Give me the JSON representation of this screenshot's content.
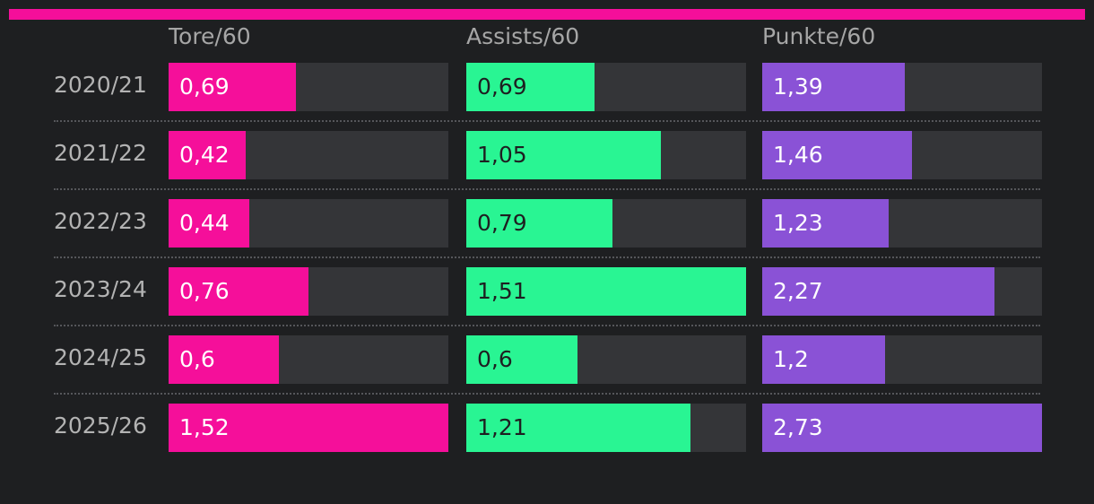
{
  "colors": {
    "accent": "#f50f9a",
    "background": "#1e1f21",
    "track": "#343538"
  },
  "chart_data": {
    "type": "bar",
    "categories": [
      "2020/21",
      "2021/22",
      "2022/23",
      "2023/24",
      "2024/25",
      "2025/26"
    ],
    "series": [
      {
        "name": "Tore/60",
        "color": "#f50f9a",
        "text_color": "#ffffff",
        "values": [
          0.69,
          0.42,
          0.44,
          0.76,
          0.6,
          1.52
        ],
        "labels": [
          "0,69",
          "0,42",
          "0,44",
          "0,76",
          "0,6",
          "1,52"
        ]
      },
      {
        "name": "Assists/60",
        "color": "#29f593",
        "text_color": "#1e1f21",
        "values": [
          0.69,
          1.05,
          0.79,
          1.51,
          0.6,
          1.21
        ],
        "labels": [
          "0,69",
          "1,05",
          "0,79",
          "1,51",
          "0,6",
          "1,21"
        ]
      },
      {
        "name": "Punkte/60",
        "color": "#8a52d6",
        "text_color": "#ffffff",
        "values": [
          1.39,
          1.46,
          1.23,
          2.27,
          1.2,
          2.73
        ],
        "labels": [
          "1,39",
          "1,46",
          "1,23",
          "2,27",
          "1,2",
          "2,73"
        ]
      }
    ],
    "legend": "none",
    "grid": false
  }
}
